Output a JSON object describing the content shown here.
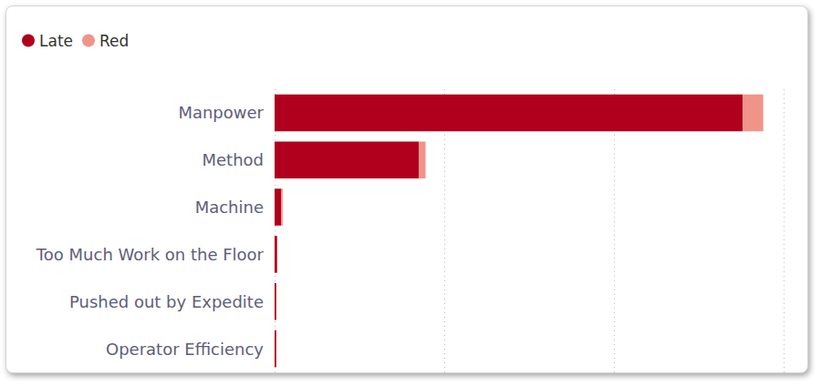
{
  "chart_data": {
    "type": "bar",
    "orientation": "horizontal",
    "stacked": true,
    "categories": [
      "Manpower",
      "Method",
      "Machine",
      "Too Much Work on the Floor",
      "Pushed out by Expedite",
      "Operator Efficiency"
    ],
    "series": [
      {
        "name": "Late",
        "color": "#b0001e",
        "values": [
          276,
          85,
          4,
          1.5,
          1,
          1
        ]
      },
      {
        "name": "Red",
        "color": "#f0948a",
        "values": [
          12,
          4,
          0.8,
          0,
          0,
          0
        ]
      }
    ],
    "xlim": [
      0,
      300
    ],
    "xticks": [
      0,
      100,
      200,
      300
    ],
    "grid": true,
    "legend": "top-left",
    "tick_labels": false
  }
}
